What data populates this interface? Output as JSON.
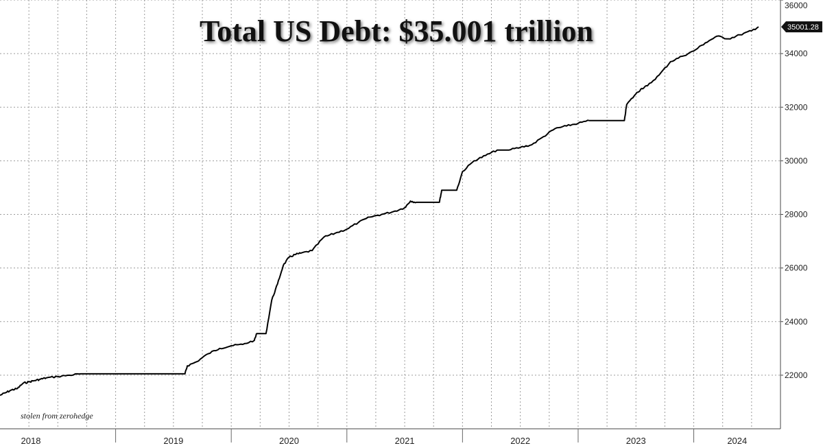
{
  "chart_data": {
    "type": "line",
    "title": "Total US Debt: $35.001 trillion",
    "credit": "stolen from zerohedge",
    "last_value_label": "35001.28",
    "xlabel": "",
    "ylabel": "",
    "x_ticks": [
      "2018",
      "2019",
      "2020",
      "2021",
      "2022",
      "2023",
      "2024"
    ],
    "y_ticks": [
      "22000",
      "24000",
      "26000",
      "28000",
      "30000",
      "32000",
      "34000",
      "36000"
    ],
    "xlim": [
      2018.0,
      2024.75
    ],
    "ylim": [
      20000,
      36000
    ],
    "grid": true,
    "series": [
      {
        "color": "#000000",
        "x": [
          2018.0,
          2018.05,
          2018.1,
          2018.15,
          2018.2,
          2018.25,
          2018.3,
          2018.35,
          2018.4,
          2018.5,
          2018.6,
          2018.7,
          2018.8,
          2018.9,
          2019.0,
          2019.1,
          2019.2,
          2019.3,
          2019.4,
          2019.5,
          2019.6,
          2019.62,
          2019.7,
          2019.8,
          2019.9,
          2020.0,
          2020.1,
          2020.2,
          2020.22,
          2020.25,
          2020.3,
          2020.35,
          2020.4,
          2020.45,
          2020.5,
          2020.55,
          2020.6,
          2020.7,
          2020.8,
          2020.9,
          2021.0,
          2021.1,
          2021.2,
          2021.3,
          2021.4,
          2021.5,
          2021.55,
          2021.6,
          2021.7,
          2021.8,
          2021.82,
          2021.9,
          2021.95,
          2022.0,
          2022.1,
          2022.2,
          2022.3,
          2022.4,
          2022.5,
          2022.6,
          2022.7,
          2022.8,
          2022.9,
          2023.0,
          2023.1,
          2023.2,
          2023.3,
          2023.4,
          2023.42,
          2023.5,
          2023.55,
          2023.6,
          2023.7,
          2023.8,
          2023.9,
          2024.0,
          2024.1,
          2024.2,
          2024.3,
          2024.4,
          2024.5,
          2024.56
        ],
        "y": [
          21250,
          21350,
          21450,
          21500,
          21700,
          21750,
          21800,
          21850,
          21900,
          21950,
          22000,
          22050,
          22050,
          22050,
          22050,
          22050,
          22050,
          22050,
          22050,
          22050,
          22050,
          22350,
          22500,
          22800,
          23000,
          23100,
          23150,
          23300,
          23550,
          23550,
          23550,
          24800,
          25400,
          26100,
          26400,
          26500,
          26550,
          26650,
          27150,
          27300,
          27450,
          27700,
          27900,
          28000,
          28100,
          28250,
          28500,
          28450,
          28450,
          28450,
          28900,
          28900,
          28900,
          29600,
          30000,
          30200,
          30400,
          30400,
          30500,
          30600,
          30900,
          31200,
          31300,
          31400,
          31500,
          31500,
          31500,
          31500,
          32100,
          32500,
          32700,
          32800,
          33200,
          33700,
          33900,
          34100,
          34400,
          34650,
          34550,
          34700,
          34850,
          35000
        ]
      }
    ]
  }
}
